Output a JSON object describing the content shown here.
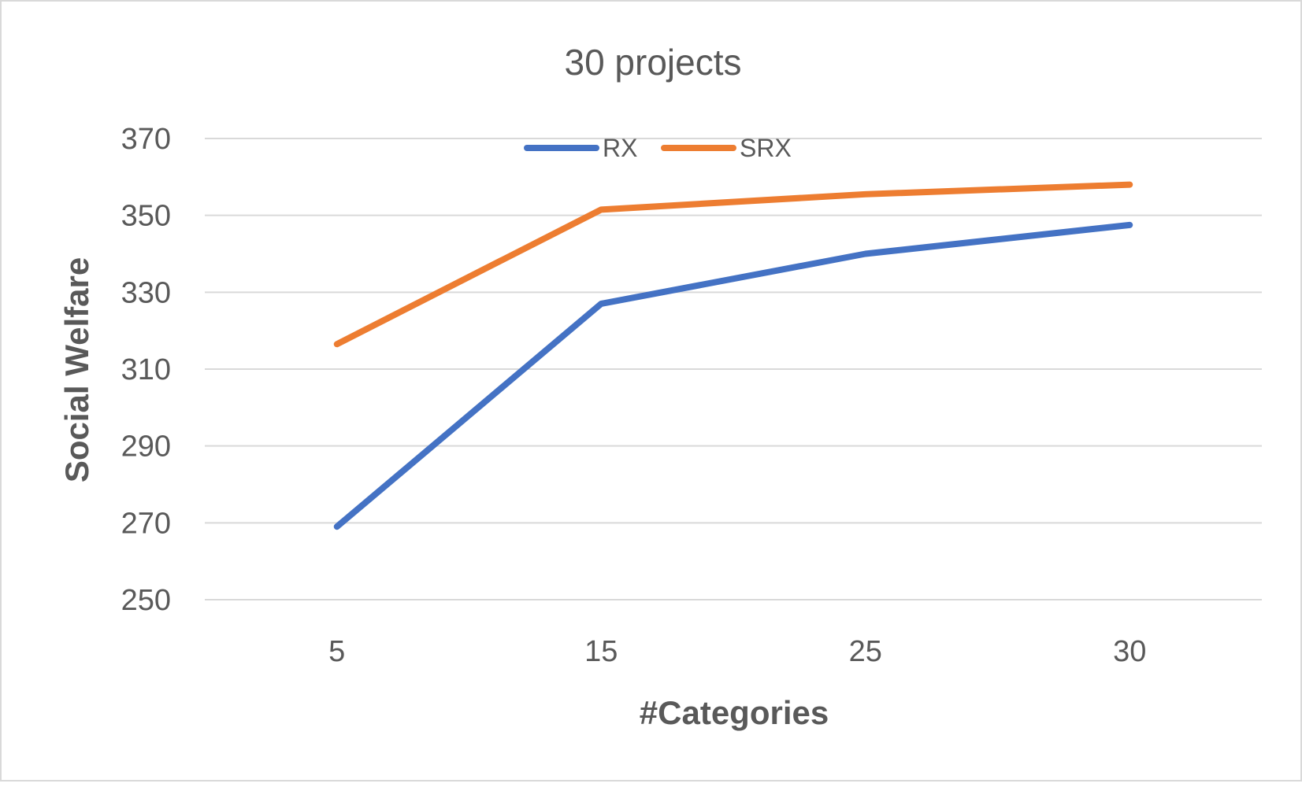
{
  "chart_data": {
    "type": "line",
    "title": "30 projects",
    "xlabel": "#Categories",
    "ylabel": "Social Welfare",
    "categories": [
      "5",
      "15",
      "25",
      "30"
    ],
    "ylim": [
      250,
      370
    ],
    "yticks": [
      "250",
      "270",
      "290",
      "310",
      "330",
      "350",
      "370"
    ],
    "grid": true,
    "legend_position": "top",
    "series": [
      {
        "name": "RX",
        "color": "#4472C4",
        "values": [
          269,
          327,
          340,
          347.5
        ]
      },
      {
        "name": "SRX",
        "color": "#ED7D31",
        "values": [
          316.5,
          351.5,
          355.5,
          358
        ]
      }
    ]
  }
}
